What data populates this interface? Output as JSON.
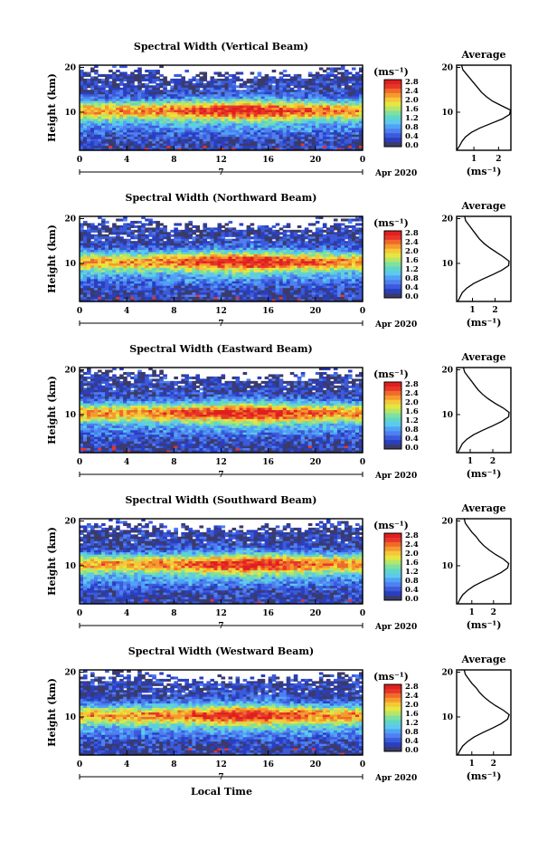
{
  "colors": {
    "scale": [
      "#3b3b6b",
      "#2a3fbf",
      "#3b5bdb",
      "#4f7ff0",
      "#4fa3f5",
      "#5ec8ee",
      "#5fd6c8",
      "#7fe0a0",
      "#b4e66a",
      "#e6e640",
      "#f5c83a",
      "#f59a2e",
      "#f06a2a",
      "#e8352a",
      "#e01f1f"
    ]
  },
  "date_label": "Apr 2020",
  "xlabel_bottom": "Local Time",
  "chart_data": [
    {
      "type": "heatmap",
      "title": "Spectral Width (Vertical Beam)",
      "ylabel": "Height (km)",
      "x_ticks": [
        "0",
        "4",
        "8",
        "12",
        "16",
        "20",
        "0"
      ],
      "y_ticks": [
        "20",
        "10"
      ],
      "date_marker": "7",
      "xlim": [
        0,
        24
      ],
      "ylim": [
        1.5,
        20.5
      ],
      "colorbar": {
        "unit": "(ms⁻¹)",
        "ticks": [
          "2.8",
          "2.4",
          "2.0",
          "1.6",
          "1.2",
          "0.8",
          "0.4",
          "0.0"
        ],
        "range": [
          0,
          2.8
        ]
      },
      "profile": {
        "title": "Average",
        "xlabel": "(ms⁻¹)",
        "x_ticks": [
          "1",
          "2"
        ],
        "xlim": [
          0.3,
          2.5
        ],
        "y_ticks": [
          "20",
          "10"
        ],
        "height": [
          1.5,
          2.5,
          3.5,
          4.5,
          5.5,
          6.5,
          7.5,
          8.5,
          9.5,
          10.5,
          11.5,
          12.5,
          13.5,
          14.5,
          15.5,
          16.5,
          17.5,
          18.5,
          19.5,
          20.5
        ],
        "width": [
          0.3,
          0.42,
          0.52,
          0.66,
          0.9,
          1.25,
          1.7,
          2.15,
          2.45,
          2.48,
          2.1,
          1.75,
          1.5,
          1.3,
          1.15,
          1.0,
          0.85,
          0.7,
          0.55,
          0.5
        ]
      }
    },
    {
      "type": "heatmap",
      "title": "Spectral Width (Northward Beam)",
      "ylabel": "Height (km)",
      "x_ticks": [
        "0",
        "4",
        "8",
        "12",
        "16",
        "20",
        "0"
      ],
      "y_ticks": [
        "20",
        "10"
      ],
      "date_marker": "7",
      "xlim": [
        0,
        24
      ],
      "ylim": [
        1.5,
        20.5
      ],
      "colorbar": {
        "unit": "(ms⁻¹)",
        "ticks": [
          "2.8",
          "2.4",
          "2.0",
          "1.6",
          "1.2",
          "0.8",
          "0.4",
          "0.0"
        ],
        "range": [
          0,
          2.8
        ]
      },
      "profile": {
        "title": "Average",
        "xlabel": "(ms⁻¹)",
        "x_ticks": [
          "1",
          "2"
        ],
        "xlim": [
          0.3,
          2.7
        ],
        "y_ticks": [
          "20",
          "10"
        ],
        "height": [
          1.5,
          2.5,
          3.5,
          4.5,
          5.5,
          6.5,
          7.5,
          8.5,
          9.5,
          10.5,
          11.5,
          12.5,
          13.5,
          14.5,
          15.5,
          16.5,
          17.5,
          18.5,
          19.5,
          20.5
        ],
        "width": [
          0.35,
          0.45,
          0.55,
          0.75,
          1.05,
          1.45,
          1.9,
          2.3,
          2.6,
          2.62,
          2.35,
          2.05,
          1.75,
          1.5,
          1.3,
          1.15,
          1.0,
          0.85,
          0.7,
          0.65
        ]
      }
    },
    {
      "type": "heatmap",
      "title": "Spectral Width (Eastward Beam)",
      "ylabel": "Height (km)",
      "x_ticks": [
        "0",
        "4",
        "8",
        "12",
        "16",
        "20",
        "0"
      ],
      "y_ticks": [
        "20",
        "10"
      ],
      "date_marker": "7",
      "xlim": [
        0,
        24
      ],
      "ylim": [
        1.5,
        20.5
      ],
      "colorbar": {
        "unit": "(ms⁻¹)",
        "ticks": [
          "2.8",
          "2.4",
          "2.0",
          "1.6",
          "1.2",
          "0.8",
          "0.4",
          "0.0"
        ],
        "range": [
          0,
          2.8
        ]
      },
      "profile": {
        "title": "Average",
        "xlabel": "(ms⁻¹)",
        "x_ticks": [
          "1",
          "2"
        ],
        "xlim": [
          0.4,
          2.8
        ],
        "y_ticks": [
          "20",
          "10"
        ],
        "height": [
          1.5,
          2.5,
          3.5,
          4.5,
          5.5,
          6.5,
          7.5,
          8.5,
          9.5,
          10.5,
          11.5,
          12.5,
          13.5,
          14.5,
          15.5,
          16.5,
          17.5,
          18.5,
          19.5,
          20.5
        ],
        "width": [
          0.45,
          0.55,
          0.65,
          0.85,
          1.15,
          1.55,
          2.0,
          2.4,
          2.7,
          2.72,
          2.45,
          2.1,
          1.8,
          1.55,
          1.35,
          1.2,
          1.05,
          0.9,
          0.75,
          0.7
        ]
      }
    },
    {
      "type": "heatmap",
      "title": "Spectral Width (Southward Beam)",
      "ylabel": "Height (km)",
      "x_ticks": [
        "0",
        "4",
        "8",
        "12",
        "16",
        "20",
        "0"
      ],
      "y_ticks": [
        "20",
        "10"
      ],
      "date_marker": "7",
      "xlim": [
        0,
        24
      ],
      "ylim": [
        1.5,
        20.5
      ],
      "colorbar": {
        "unit": "(ms⁻¹)",
        "ticks": [
          "2.8",
          "2.4",
          "2.0",
          "1.6",
          "1.2",
          "0.8",
          "0.4",
          "0.0"
        ],
        "range": [
          0,
          2.8
        ]
      },
      "profile": {
        "title": "Average",
        "xlabel": "(ms⁻¹)",
        "x_ticks": [
          "1",
          "2"
        ],
        "xlim": [
          0.3,
          2.8
        ],
        "y_ticks": [
          "20",
          "10"
        ],
        "height": [
          1.5,
          2.5,
          3.5,
          4.5,
          5.5,
          6.5,
          7.5,
          8.5,
          9.5,
          10.5,
          11.5,
          12.5,
          13.5,
          14.5,
          15.5,
          16.5,
          17.5,
          18.5,
          19.5,
          20.5
        ],
        "width": [
          0.35,
          0.45,
          0.58,
          0.8,
          1.1,
          1.5,
          1.95,
          2.35,
          2.65,
          2.7,
          2.45,
          2.1,
          1.8,
          1.55,
          1.35,
          1.2,
          1.0,
          0.85,
          0.7,
          0.65
        ]
      }
    },
    {
      "type": "heatmap",
      "title": "Spectral Width (Westward Beam)",
      "ylabel": "Height (km)",
      "x_ticks": [
        "0",
        "4",
        "8",
        "12",
        "16",
        "20",
        "0"
      ],
      "y_ticks": [
        "20",
        "10"
      ],
      "date_marker": "7",
      "xlim": [
        0,
        24
      ],
      "ylim": [
        1.5,
        20.5
      ],
      "colorbar": {
        "unit": "(ms⁻¹)",
        "ticks": [
          "2.8",
          "2.4",
          "2.0",
          "1.6",
          "1.2",
          "0.8",
          "0.4",
          "0.0"
        ],
        "range": [
          0,
          2.8
        ]
      },
      "profile": {
        "title": "Average",
        "xlabel": "(ms⁻¹)",
        "x_ticks": [
          "1",
          "2"
        ],
        "xlim": [
          0.3,
          2.8
        ],
        "y_ticks": [
          "20",
          "10"
        ],
        "height": [
          1.5,
          2.5,
          3.5,
          4.5,
          5.5,
          6.5,
          7.5,
          8.5,
          9.5,
          10.5,
          11.5,
          12.5,
          13.5,
          14.5,
          15.5,
          16.5,
          17.5,
          18.5,
          19.5,
          20.5
        ],
        "width": [
          0.35,
          0.45,
          0.58,
          0.8,
          1.1,
          1.5,
          1.95,
          2.35,
          2.65,
          2.72,
          2.45,
          2.1,
          1.8,
          1.55,
          1.35,
          1.2,
          1.0,
          0.85,
          0.7,
          0.65
        ]
      }
    }
  ]
}
